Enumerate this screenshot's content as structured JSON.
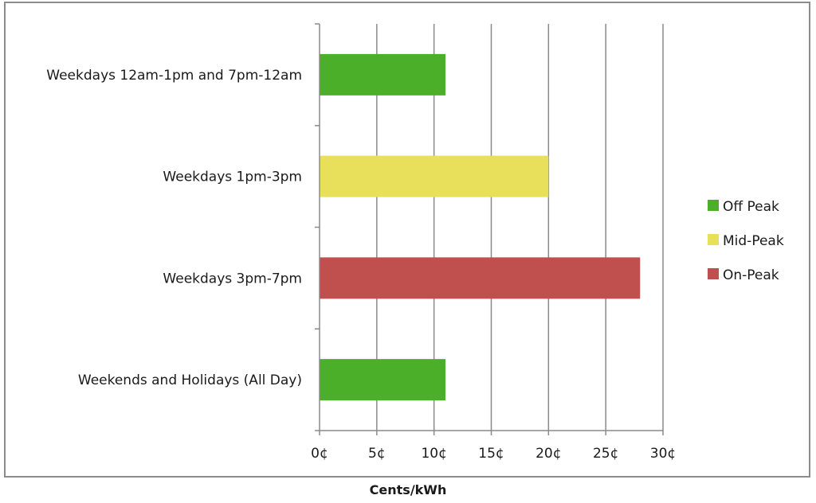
{
  "chart_data": {
    "type": "bar",
    "orientation": "horizontal",
    "title": "",
    "xlabel": "Cents/kWh",
    "ylabel": "",
    "categories": [
      "Weekdays 12am-1pm and 7pm-12am",
      "Weekdays 1pm-3pm",
      "Weekdays 3pm-7pm",
      "Weekends and Holidays (All Day)"
    ],
    "values": [
      11,
      20,
      28,
      11
    ],
    "bar_series": [
      "Off Peak",
      "Mid-Peak",
      "On-Peak",
      "Off Peak"
    ],
    "xlim": [
      0,
      30
    ],
    "xticks": [
      0,
      5,
      10,
      15,
      20,
      25,
      30
    ],
    "xtick_labels": [
      "0¢",
      "5¢",
      "10¢",
      "15¢",
      "20¢",
      "25¢",
      "30¢"
    ],
    "grid": true,
    "legend": {
      "placement": "right",
      "entries": [
        {
          "name": "Off Peak",
          "color": "#4caf2a"
        },
        {
          "name": "Mid-Peak",
          "color": "#e8e05a"
        },
        {
          "name": "On-Peak",
          "color": "#c0504d"
        }
      ]
    }
  }
}
